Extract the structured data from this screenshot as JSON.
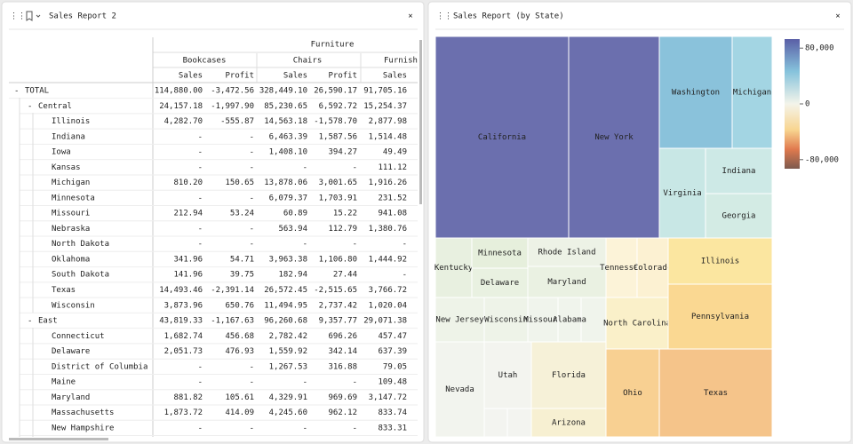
{
  "left_panel": {
    "title": "Sales Report 2",
    "close": "×",
    "table": {
      "group_header": "Furniture",
      "subheaders": [
        "Bookcases",
        "Chairs",
        "Furnish"
      ],
      "measures": [
        "Sales",
        "Profit",
        "Sales",
        "Profit",
        "Sales"
      ],
      "rows": [
        {
          "expander": "-",
          "label": "TOTAL",
          "values": [
            "114,880.00",
            "-3,472.56",
            "328,449.10",
            "26,590.17",
            "91,705.16"
          ]
        },
        {
          "expander": "-",
          "label": "Central",
          "values": [
            "24,157.18",
            "-1,997.90",
            "85,230.65",
            "6,592.72",
            "15,254.37"
          ]
        },
        {
          "label": "Illinois",
          "values": [
            "4,282.70",
            "-555.87",
            "14,563.18",
            "-1,578.70",
            "2,877.98"
          ]
        },
        {
          "label": "Indiana",
          "values": [
            "-",
            "-",
            "6,463.39",
            "1,587.56",
            "1,514.48"
          ]
        },
        {
          "label": "Iowa",
          "values": [
            "-",
            "-",
            "1,408.10",
            "394.27",
            "49.49"
          ]
        },
        {
          "label": "Kansas",
          "values": [
            "-",
            "-",
            "-",
            "-",
            "111.12"
          ]
        },
        {
          "label": "Michigan",
          "values": [
            "810.20",
            "150.65",
            "13,878.06",
            "3,001.65",
            "1,916.26"
          ]
        },
        {
          "label": "Minnesota",
          "values": [
            "-",
            "-",
            "6,079.37",
            "1,703.91",
            "231.52"
          ]
        },
        {
          "label": "Missouri",
          "values": [
            "212.94",
            "53.24",
            "60.89",
            "15.22",
            "941.08"
          ]
        },
        {
          "label": "Nebraska",
          "values": [
            "-",
            "-",
            "563.94",
            "112.79",
            "1,380.76"
          ]
        },
        {
          "label": "North Dakota",
          "values": [
            "-",
            "-",
            "-",
            "-",
            "-"
          ]
        },
        {
          "label": "Oklahoma",
          "values": [
            "341.96",
            "54.71",
            "3,963.38",
            "1,106.80",
            "1,444.92"
          ]
        },
        {
          "label": "South Dakota",
          "values": [
            "141.96",
            "39.75",
            "182.94",
            "27.44",
            "-"
          ]
        },
        {
          "label": "Texas",
          "values": [
            "14,493.46",
            "-2,391.14",
            "26,572.45",
            "-2,515.65",
            "3,766.72"
          ]
        },
        {
          "label": "Wisconsin",
          "values": [
            "3,873.96",
            "650.76",
            "11,494.95",
            "2,737.42",
            "1,020.04"
          ]
        },
        {
          "expander": "-",
          "label": "East",
          "values": [
            "43,819.33",
            "-1,167.63",
            "96,260.68",
            "9,357.77",
            "29,071.38"
          ]
        },
        {
          "label": "Connecticut",
          "values": [
            "1,682.74",
            "456.68",
            "2,782.42",
            "696.26",
            "457.47"
          ]
        },
        {
          "label": "Delaware",
          "values": [
            "2,051.73",
            "476.93",
            "1,559.92",
            "342.14",
            "637.39"
          ]
        },
        {
          "label": "District of Columbia",
          "values": [
            "-",
            "-",
            "1,267.53",
            "316.88",
            "79.05"
          ]
        },
        {
          "label": "Maine",
          "values": [
            "-",
            "-",
            "-",
            "-",
            "109.48"
          ]
        },
        {
          "label": "Maryland",
          "values": [
            "881.82",
            "105.61",
            "4,329.91",
            "969.69",
            "3,147.72"
          ]
        },
        {
          "label": "Massachusetts",
          "values": [
            "1,873.72",
            "414.09",
            "4,245.60",
            "962.12",
            "833.74"
          ]
        },
        {
          "label": "New Hampshire",
          "values": [
            "-",
            "-",
            "-",
            "-",
            "833.31"
          ]
        }
      ]
    }
  },
  "right_panel": {
    "title": "Sales Report (by State)",
    "close": "×",
    "treemap": {
      "cells": [
        "California",
        "New York",
        "Washington",
        "Michigan",
        "Virginia",
        "Indiana",
        "Georgia",
        "Kentucky",
        "Minnesota",
        "Delaware",
        "Rhode Island",
        "Maryland",
        "New Jersey",
        "Wisconsin",
        "Missouri",
        "Alabama",
        "Nevada",
        "Utah",
        "Florida",
        "Arizona",
        "Tennessee",
        "Colorado",
        "North Carolina",
        "Illinois",
        "Pennsylvania",
        "Ohio",
        "Texas"
      ]
    },
    "legend": {
      "range": [
        -93000,
        93000
      ],
      "ticks": [
        {
          "value": 80000,
          "label": "80,000"
        },
        0,
        {
          "value": -80000,
          "label": "-80,000"
        }
      ]
    }
  }
}
